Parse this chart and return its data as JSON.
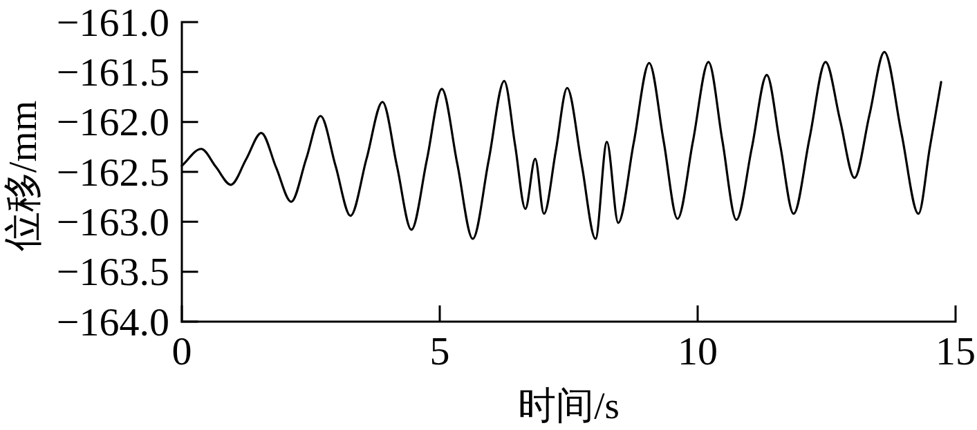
{
  "chart_data": {
    "type": "line",
    "xlabel": "时间/s",
    "ylabel": "位移/mm",
    "x": [
      0,
      0.375,
      0.66,
      0.95,
      1.25,
      1.54,
      1.83,
      2.12,
      2.41,
      2.69,
      2.98,
      3.27,
      3.58,
      3.89,
      4.17,
      4.45,
      4.75,
      5.04,
      5.34,
      5.64,
      5.95,
      6.25,
      6.46,
      6.66,
      6.85,
      7.02,
      7.25,
      7.47,
      7.75,
      8.02,
      8.24,
      8.46,
      8.76,
      9.06,
      9.34,
      9.61,
      9.91,
      10.21,
      10.48,
      10.75,
      11.05,
      11.34,
      11.6,
      11.86,
      12.17,
      12.48,
      12.76,
      13.04,
      13.33,
      13.62,
      13.95,
      14.28,
      14.5,
      14.72
    ],
    "values": [
      -162.44,
      -162.27,
      -162.45,
      -162.63,
      -162.37,
      -162.11,
      -162.46,
      -162.8,
      -162.37,
      -161.94,
      -162.44,
      -162.94,
      -162.37,
      -161.8,
      -162.44,
      -163.08,
      -162.38,
      -161.67,
      -162.42,
      -163.17,
      -162.38,
      -161.59,
      -162.23,
      -162.87,
      -162.37,
      -162.92,
      -162.29,
      -161.66,
      -162.42,
      -163.17,
      -162.2,
      -163.01,
      -162.21,
      -161.41,
      -162.19,
      -162.97,
      -162.19,
      -161.4,
      -162.19,
      -162.98,
      -162.26,
      -161.53,
      -162.23,
      -162.92,
      -162.16,
      -161.4,
      -161.98,
      -162.56,
      -161.93,
      -161.3,
      -162.11,
      -162.92,
      -162.26,
      -161.6
    ],
    "color": "#000000",
    "line_style": "solid",
    "xlim": [
      0,
      15
    ],
    "ylim": [
      -164,
      -161
    ],
    "xticks": [
      0,
      5,
      10,
      15
    ],
    "yticks": [
      {
        "value": -164,
        "label": "−164.0"
      },
      {
        "value": -163.5,
        "label": "−163.5"
      },
      {
        "value": -163,
        "label": "−163.0"
      },
      {
        "value": -162.5,
        "label": "−162.5"
      },
      {
        "value": -162,
        "label": "−162.0"
      },
      {
        "value": -161.5,
        "label": "−161.5"
      },
      {
        "value": -161,
        "label": "−161.0"
      }
    ]
  }
}
